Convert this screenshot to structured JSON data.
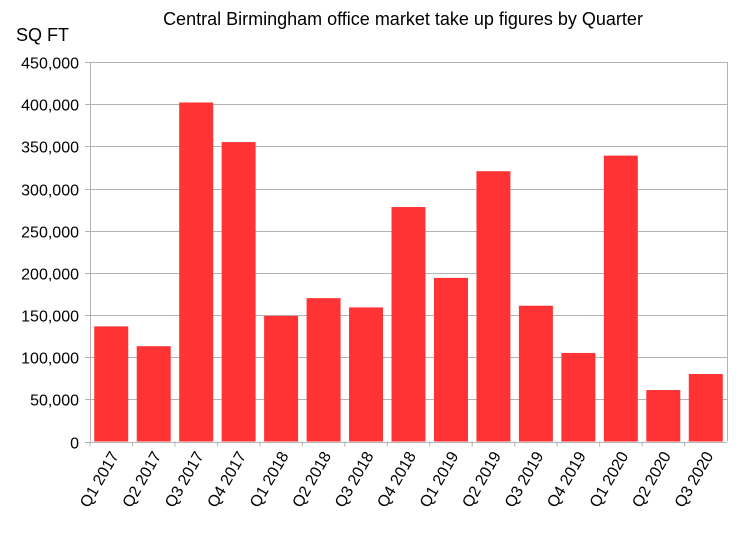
{
  "chart_data": {
    "type": "bar",
    "title": "Central Birmingham office market take up figures by Quarter",
    "ylabel": "SQ FT",
    "xlabel": "",
    "ylim": [
      0,
      450000
    ],
    "yticks": [
      0,
      50000,
      100000,
      150000,
      200000,
      250000,
      300000,
      350000,
      400000,
      450000
    ],
    "ytick_labels": [
      "0",
      "50,000",
      "100,000",
      "150,000",
      "200,000",
      "250,000",
      "300,000",
      "350,000",
      "400,000",
      "450,000"
    ],
    "grid": true,
    "legend": "none",
    "bar_color": "#ff3333",
    "categories": [
      "Q1 2017",
      "Q2 2017",
      "Q3 2017",
      "Q4 2017",
      "Q1 2018",
      "Q2 2018",
      "Q3 2018",
      "Q4 2018",
      "Q1 2019",
      "Q2 2019",
      "Q3 2019",
      "Q4 2019",
      "Q1 2020",
      "Q2 2020",
      "Q3 2020"
    ],
    "values": [
      136500,
      113000,
      402000,
      355000,
      149000,
      170000,
      159000,
      278000,
      194000,
      320500,
      161000,
      105000,
      339000,
      61000,
      80000
    ]
  }
}
